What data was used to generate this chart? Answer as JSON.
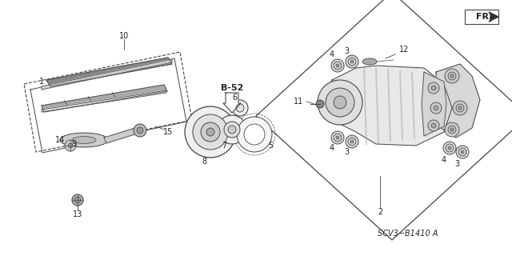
{
  "bg_color": "#ffffff",
  "line_color": "#444444",
  "text_color": "#222222",
  "part_number_label": "SCV3−B1410 A",
  "fr_label": "FR.",
  "b52_label": "B-52",
  "fig_width": 6.4,
  "fig_height": 3.2,
  "dpi": 100
}
